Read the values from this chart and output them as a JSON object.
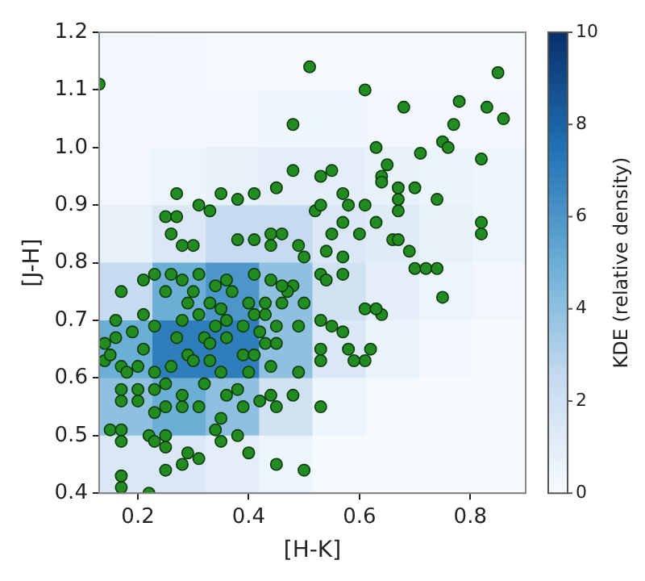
{
  "chart_data": [
    {
      "type": "heatmap",
      "categories": [
        null,
        null,
        null,
        null,
        null,
        null,
        null,
        null
      ],
      "y_categories": [
        null,
        null,
        null,
        null,
        null,
        null,
        null,
        null
      ],
      "clabel": "KDE (relative density)",
      "clim": [
        0,
        10
      ],
      "cticks": [
        0,
        2,
        4,
        6,
        8,
        10
      ],
      "cells": [
        [
          0.3,
          0.2,
          0.1,
          0.1,
          0.1,
          0.1,
          0.1,
          0.1
        ],
        [
          0.3,
          0.3,
          0.3,
          0.4,
          0.4,
          0.3,
          0.3,
          0.3
        ],
        [
          0.3,
          0.5,
          0.8,
          1,
          1,
          0.8,
          0.6,
          0.4
        ],
        [
          0.8,
          1.5,
          2.5,
          2.5,
          1.5,
          1.2,
          0.8,
          0.5
        ],
        [
          2.5,
          5,
          6,
          4,
          2,
          1,
          0.5,
          0.3
        ],
        [
          5,
          7,
          7,
          4,
          1.5,
          0.6,
          0.2,
          0.1
        ],
        [
          4,
          5,
          4,
          2,
          0.5,
          0.1,
          0,
          0
        ],
        [
          1.5,
          1.5,
          1,
          0.5,
          0.1,
          0,
          0,
          0
        ]
      ]
    },
    {
      "type": "scatter",
      "xlabel": "[H-K]",
      "ylabel": "[J-H]",
      "xlim": [
        0.13,
        0.9
      ],
      "ylim": [
        0.4,
        1.2
      ],
      "xticks": [
        0.2,
        0.4,
        0.6,
        0.8
      ],
      "yticks": [
        0.4,
        0.5,
        0.6,
        0.7,
        0.8,
        0.9,
        {
          "value": 1.0,
          "label": "1.0"
        },
        1.1,
        1.2
      ],
      "marker": "circle",
      "series": [
        {
          "color": "#228b22",
          "x": [
            0.13,
            0.51,
            0.61,
            0.68,
            0.85,
            0.83,
            0.86,
            0.78,
            0.77,
            0.75,
            0.76,
            0.71,
            0.82,
            0.48,
            0.63,
            0.48,
            0.53,
            0.55,
            0.65,
            0.64,
            0.64,
            0.67,
            0.7,
            0.67,
            0.74,
            0.67,
            0.82,
            0.82,
            0.27,
            0.35,
            0.38,
            0.41,
            0.45,
            0.57,
            0.31,
            0.33,
            0.25,
            0.27,
            0.26,
            0.52,
            0.53,
            0.58,
            0.61,
            0.57,
            0.63,
            0.55,
            0.6,
            0.66,
            0.67,
            0.69,
            0.7,
            0.72,
            0.28,
            0.3,
            0.38,
            0.41,
            0.44,
            0.46,
            0.44,
            0.49,
            0.5,
            0.54,
            0.57,
            0.17,
            0.21,
            0.23,
            0.26,
            0.28,
            0.31,
            0.34,
            0.36,
            0.41,
            0.44,
            0.48,
            0.53,
            0.54,
            0.57,
            0.74,
            0.75,
            0.64,
            0.61,
            0.63,
            0.55,
            0.57,
            0.53,
            0.49,
            0.62,
            0.58,
            0.61,
            0.59,
            0.53,
            0.53,
            0.49,
            0.48,
            0.53,
            0.44,
            0.45,
            0.42,
            0.44,
            0.43,
            0.45,
            0.5,
            0.45,
            0.4,
            0.38,
            0.35,
            0.34,
            0.31,
            0.29,
            0.28,
            0.25,
            0.25,
            0.25,
            0.22,
            0.17,
            0.17,
            0.17,
            0.15,
            0.17,
            0.22,
            0.23,
            0.14,
            0.14,
            0.16,
            0.16,
            0.17,
            0.18,
            0.17,
            0.17,
            0.2,
            0.2,
            0.2,
            0.21,
            0.21,
            0.23,
            0.23,
            0.23,
            0.23,
            0.25,
            0.25,
            0.26,
            0.27,
            0.28,
            0.29,
            0.31,
            0.32,
            0.29,
            0.3,
            0.28,
            0.28,
            0.31,
            0.32,
            0.33,
            0.33,
            0.34,
            0.33,
            0.35,
            0.36,
            0.36,
            0.35,
            0.36,
            0.35,
            0.38,
            0.39,
            0.4,
            0.39,
            0.39,
            0.4,
            0.41,
            0.42,
            0.41,
            0.43,
            0.43,
            0.46,
            0.47,
            0.45,
            0.5,
            0.46,
            0.37,
            0.3,
            0.25,
            0.19,
            0.15
          ],
          "values": [
            1.11,
            1.14,
            1.1,
            1.07,
            1.13,
            1.07,
            1.05,
            1.08,
            1.04,
            1.01,
            1.0,
            0.99,
            0.98,
            1.04,
            1.0,
            0.96,
            0.95,
            0.96,
            0.97,
            0.95,
            0.94,
            0.93,
            0.93,
            0.91,
            0.91,
            0.89,
            0.87,
            0.85,
            0.92,
            0.92,
            0.91,
            0.92,
            0.93,
            0.92,
            0.9,
            0.89,
            0.88,
            0.88,
            0.85,
            0.89,
            0.9,
            0.9,
            0.9,
            0.87,
            0.87,
            0.85,
            0.85,
            0.84,
            0.84,
            0.82,
            0.79,
            0.79,
            0.83,
            0.83,
            0.84,
            0.84,
            0.85,
            0.85,
            0.83,
            0.83,
            0.81,
            0.82,
            0.81,
            0.75,
            0.77,
            0.78,
            0.78,
            0.77,
            0.78,
            0.76,
            0.77,
            0.78,
            0.77,
            0.76,
            0.78,
            0.77,
            0.78,
            0.79,
            0.74,
            0.71,
            0.72,
            0.72,
            0.69,
            0.68,
            0.7,
            0.69,
            0.65,
            0.65,
            0.63,
            0.63,
            0.65,
            0.63,
            0.61,
            0.57,
            0.55,
            0.57,
            0.55,
            0.56,
            0.62,
            0.66,
            0.66,
            0.44,
            0.45,
            0.47,
            0.5,
            0.49,
            0.51,
            0.46,
            0.47,
            0.45,
            0.44,
            0.48,
            0.5,
            0.4,
            0.41,
            0.43,
            0.49,
            0.51,
            0.51,
            0.5,
            0.49,
            0.63,
            0.66,
            0.67,
            0.7,
            0.62,
            0.61,
            0.58,
            0.56,
            0.56,
            0.58,
            0.62,
            0.65,
            0.71,
            0.69,
            0.61,
            0.58,
            0.54,
            0.55,
            0.59,
            0.62,
            0.67,
            0.7,
            0.73,
            0.71,
            0.67,
            0.64,
            0.63,
            0.57,
            0.55,
            0.55,
            0.59,
            0.63,
            0.66,
            0.69,
            0.73,
            0.72,
            0.7,
            0.67,
            0.61,
            0.57,
            0.53,
            0.58,
            0.55,
            0.61,
            0.64,
            0.69,
            0.73,
            0.71,
            0.68,
            0.64,
            0.73,
            0.71,
            0.73,
            0.75,
            0.69,
            0.73,
            0.76,
            0.75,
            0.75,
            0.75,
            0.68,
            0.64
          ]
        }
      ]
    }
  ]
}
